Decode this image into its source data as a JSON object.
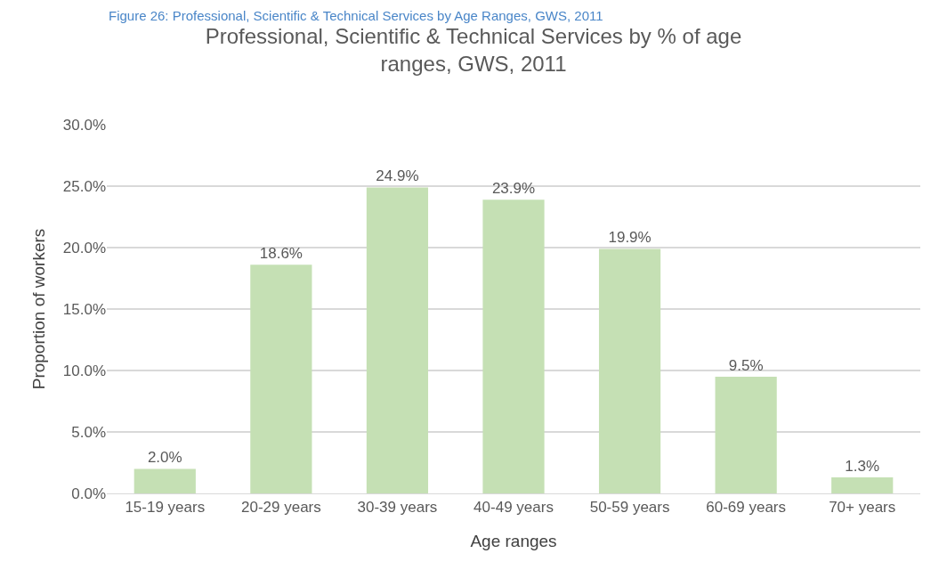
{
  "chart_data": {
    "type": "bar",
    "title": "Professional, Scientific & Technical Services by % of age ranges, GWS, 2011",
    "annotations": [
      "Figure 26: Professional, Scientific & Technical Services by Age Ranges, GWS, 2011"
    ],
    "xlabel": "Age ranges",
    "ylabel": "Proportion of workers",
    "categories": [
      "15-19 years",
      "20-29 years",
      "30-39 years",
      "40-49 years",
      "50-59 years",
      "60-69 years",
      "70+ years"
    ],
    "values": [
      2.0,
      18.6,
      24.9,
      23.9,
      19.9,
      9.5,
      1.3
    ],
    "value_labels": [
      "2.0%",
      "18.6%",
      "24.9%",
      "23.9%",
      "19.9%",
      "9.5%",
      "1.3%"
    ],
    "color": "#c5e0b4",
    "ylim": [
      0,
      30
    ],
    "yticks": [
      {
        "value": 0,
        "label": "0.0%"
      },
      {
        "value": 5,
        "label": "5.0%"
      },
      {
        "value": 10,
        "label": "10.0%"
      },
      {
        "value": 15,
        "label": "15.0%"
      },
      {
        "value": 20,
        "label": "20.0%"
      },
      {
        "value": 25,
        "label": "25.0%"
      },
      {
        "value": 30,
        "label": "30.0%"
      }
    ],
    "grid": "y",
    "legend": false
  }
}
